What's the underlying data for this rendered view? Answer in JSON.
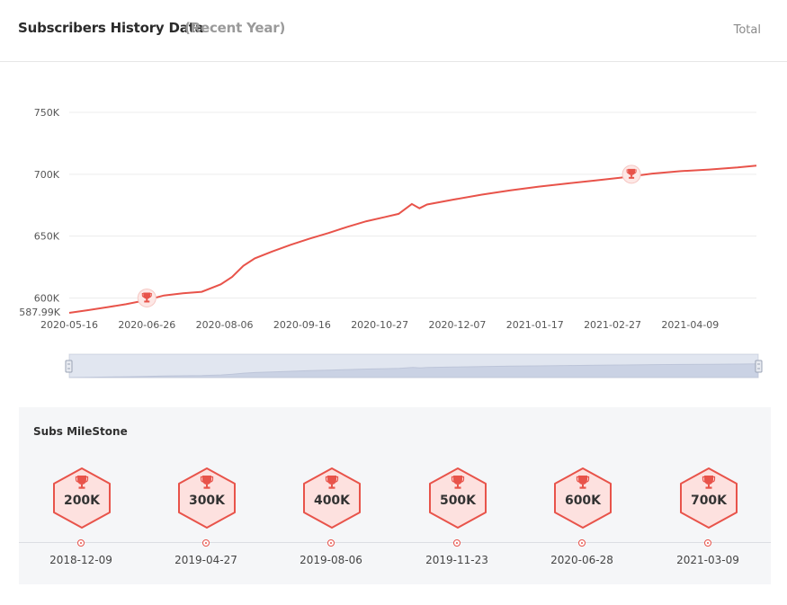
{
  "header": {
    "title": "Subscribers History Data",
    "subtitle": "(Recent Year)",
    "total_label": "Total"
  },
  "colors": {
    "line": "#e8534a",
    "grid": "#ececec",
    "slider_fill": "#d9deea",
    "milestone_fill": "#fde1df"
  },
  "chart_data": {
    "type": "line",
    "title": "",
    "xlabel": "",
    "ylabel": "",
    "ylim": [
      587990,
      750000
    ],
    "y_ticks": [
      {
        "value": 750000,
        "label": "750K"
      },
      {
        "value": 700000,
        "label": "700K"
      },
      {
        "value": 650000,
        "label": "650K"
      },
      {
        "value": 600000,
        "label": "600K"
      },
      {
        "value": 587990,
        "label": "587.99K"
      }
    ],
    "x_ticks": [
      "2020-05-16",
      "2020-06-26",
      "2020-08-06",
      "2020-09-16",
      "2020-10-27",
      "2020-12-07",
      "2021-01-17",
      "2021-02-27",
      "2021-04-09"
    ],
    "xlim": [
      "2020-05-16",
      "2021-05-14"
    ],
    "grid": true,
    "series": [
      {
        "points": [
          [
            "2020-05-16",
            588000
          ],
          [
            "2020-05-26",
            590200
          ],
          [
            "2020-06-05",
            592600
          ],
          [
            "2020-06-15",
            595000
          ],
          [
            "2020-06-25",
            598000
          ],
          [
            "2020-07-05",
            602000
          ],
          [
            "2020-07-15",
            603800
          ],
          [
            "2020-07-25",
            605000
          ],
          [
            "2020-08-04",
            611000
          ],
          [
            "2020-08-10",
            617000
          ],
          [
            "2020-08-16",
            626000
          ],
          [
            "2020-08-22",
            632000
          ],
          [
            "2020-08-31",
            637500
          ],
          [
            "2020-09-10",
            643000
          ],
          [
            "2020-09-20",
            648000
          ],
          [
            "2020-09-30",
            652500
          ],
          [
            "2020-10-10",
            657500
          ],
          [
            "2020-10-20",
            662000
          ],
          [
            "2020-10-30",
            665500
          ],
          [
            "2020-11-06",
            668000
          ],
          [
            "2020-11-13",
            676000
          ],
          [
            "2020-11-17",
            672500
          ],
          [
            "2020-11-21",
            675500
          ],
          [
            "2020-12-05",
            679500
          ],
          [
            "2020-12-20",
            683500
          ],
          [
            "2021-01-04",
            687000
          ],
          [
            "2021-01-19",
            690000
          ],
          [
            "2021-02-03",
            692500
          ],
          [
            "2021-02-18",
            695000
          ],
          [
            "2021-03-05",
            697500
          ],
          [
            "2021-03-20",
            700500
          ],
          [
            "2021-04-04",
            702500
          ],
          [
            "2021-04-19",
            703800
          ],
          [
            "2021-05-04",
            705500
          ],
          [
            "2021-05-14",
            707000
          ]
        ]
      }
    ],
    "markers": [
      {
        "x": "2020-06-26",
        "y": 600000,
        "icon": "trophy-icon"
      },
      {
        "x": "2021-03-09",
        "y": 700000,
        "icon": "trophy-icon"
      }
    ]
  },
  "milestones": {
    "title": "Subs MileStone",
    "items": [
      {
        "value": "200K",
        "date": "2018-12-09"
      },
      {
        "value": "300K",
        "date": "2019-04-27"
      },
      {
        "value": "400K",
        "date": "2019-08-06"
      },
      {
        "value": "500K",
        "date": "2019-11-23"
      },
      {
        "value": "600K",
        "date": "2020-06-28"
      },
      {
        "value": "700K",
        "date": "2021-03-09"
      }
    ]
  }
}
